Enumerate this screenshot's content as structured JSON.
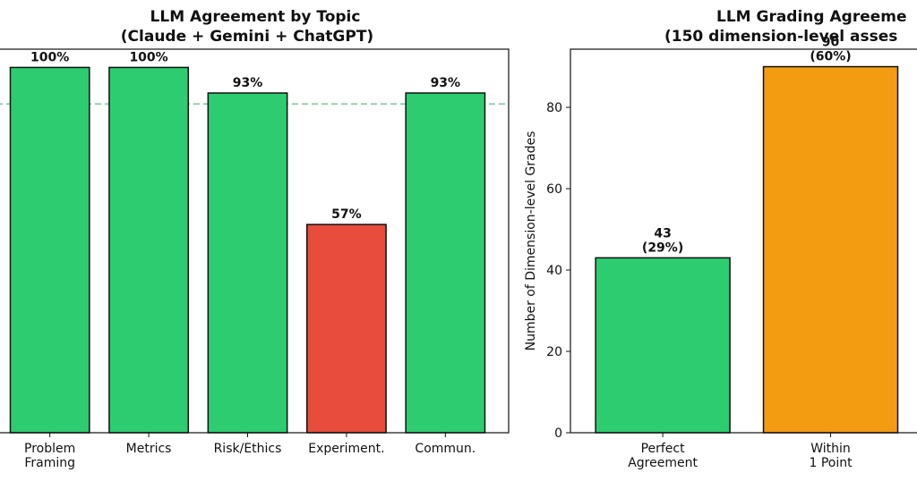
{
  "chart_data": [
    {
      "type": "bar",
      "title": "LLM Agreement by Topic",
      "subtitle": "(Claude + Gemini + ChatGPT)",
      "categories": [
        "Problem\nFraming",
        "Metrics",
        "Risk/Ethics",
        "Experiment.",
        "Commun."
      ],
      "values": [
        100,
        100,
        93,
        57,
        93
      ],
      "value_labels": [
        "100%",
        "100%",
        "93%",
        "57%",
        "93%"
      ],
      "colors": [
        "#2ecc71",
        "#2ecc71",
        "#2ecc71",
        "#e74c3c",
        "#2ecc71"
      ],
      "reference_line": 90,
      "ylim": [
        0,
        105
      ]
    },
    {
      "type": "bar",
      "title": "LLM Grading Agreeme",
      "subtitle": "(150 dimension-level asses",
      "y_label": "Number of Dimension-level Grades",
      "categories": [
        "Perfect\nAgreement",
        "Within\n1 Point"
      ],
      "values": [
        43,
        90
      ],
      "value_labels": [
        "43\n(29%)",
        "90\n(60%)"
      ],
      "colors": [
        "#2ecc71",
        "#f39c12"
      ],
      "ylim": [
        0,
        94.3
      ],
      "yticks": [
        0,
        20,
        40,
        60,
        80
      ]
    }
  ]
}
